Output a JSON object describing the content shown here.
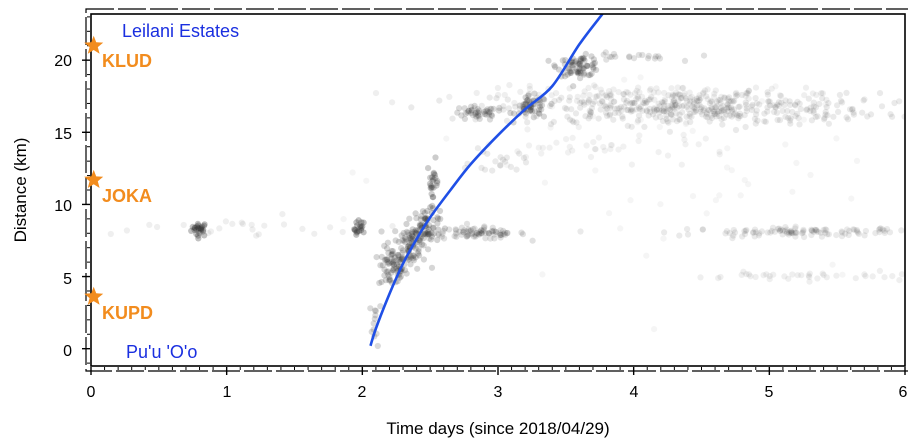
{
  "chart_data": {
    "type": "scatter",
    "title": "",
    "xlabel": "Time days (since 2018/04/29)",
    "ylabel": "Distance (km)",
    "xlim": [
      0,
      6
    ],
    "ylim": [
      -1.2,
      23.2
    ],
    "x_ticks": [
      "0",
      "1",
      "2",
      "3",
      "4",
      "5",
      "6"
    ],
    "y_ticks": [
      "0",
      "5",
      "10",
      "15",
      "20"
    ],
    "grid": false,
    "legend": "none",
    "stations": [
      {
        "name": "KLUD",
        "x": 0.02,
        "y": 21.0
      },
      {
        "name": "JOKA",
        "x": 0.02,
        "y": 11.7
      },
      {
        "name": "KUPD",
        "x": 0.02,
        "y": 3.6
      }
    ],
    "place_labels": [
      {
        "name": "Leilani Estates",
        "x": 0.22,
        "y": 22.0
      },
      {
        "name": "Pu'u 'O'o",
        "x": 0.26,
        "y": -0.05
      }
    ],
    "curve": {
      "description_label": "",
      "points": [
        [
          2.06,
          0.2
        ],
        [
          2.1,
          1.4
        ],
        [
          2.2,
          3.8
        ],
        [
          2.3,
          5.9
        ],
        [
          2.4,
          7.6
        ],
        [
          2.5,
          9.1
        ],
        [
          2.65,
          11.0
        ],
        [
          2.8,
          12.8
        ],
        [
          3.0,
          14.8
        ],
        [
          3.2,
          16.6
        ],
        [
          3.4,
          18.2
        ],
        [
          3.6,
          21.1
        ],
        [
          3.77,
          23.2
        ]
      ]
    },
    "clusters": [
      {
        "x": 0.8,
        "y": 8.3,
        "n": 25,
        "sx": 0.03,
        "sy": 0.25,
        "a": 0.3
      },
      {
        "x": 1.98,
        "y": 8.3,
        "n": 18,
        "sx": 0.02,
        "sy": 0.3,
        "a": 0.3
      },
      {
        "x": 2.1,
        "y": 1.8,
        "n": 12,
        "sx": 0.02,
        "sy": 0.8,
        "a": 0.18
      },
      {
        "x": 2.22,
        "y": 5.6,
        "n": 70,
        "sx": 0.05,
        "sy": 0.7,
        "a": 0.2
      },
      {
        "x": 2.35,
        "y": 7.2,
        "n": 80,
        "sx": 0.06,
        "sy": 0.8,
        "a": 0.2
      },
      {
        "x": 2.47,
        "y": 8.5,
        "n": 60,
        "sx": 0.05,
        "sy": 0.6,
        "a": 0.22
      },
      {
        "x": 2.52,
        "y": 11.5,
        "n": 25,
        "sx": 0.02,
        "sy": 0.8,
        "a": 0.25
      },
      {
        "x": 2.85,
        "y": 8.0,
        "n": 80,
        "sx": 0.18,
        "sy": 0.2,
        "a": 0.15
      },
      {
        "x": 2.85,
        "y": 16.3,
        "n": 40,
        "sx": 0.1,
        "sy": 0.25,
        "a": 0.18
      },
      {
        "x": 3.25,
        "y": 16.7,
        "n": 50,
        "sx": 0.06,
        "sy": 0.4,
        "a": 0.2
      },
      {
        "x": 3.6,
        "y": 19.6,
        "n": 70,
        "sx": 0.08,
        "sy": 0.35,
        "a": 0.2
      },
      {
        "x": 3.95,
        "y": 20.2,
        "n": 20,
        "sx": 0.18,
        "sy": 0.15,
        "a": 0.15
      },
      {
        "x": 4.4,
        "y": 16.6,
        "n": 400,
        "sx": 0.7,
        "sy": 0.55,
        "a": 0.1
      },
      {
        "x": 4.2,
        "y": 17.6,
        "n": 120,
        "sx": 0.7,
        "sy": 0.3,
        "a": 0.08
      },
      {
        "x": 5.3,
        "y": 8.1,
        "n": 120,
        "sx": 0.45,
        "sy": 0.15,
        "a": 0.1
      },
      {
        "x": 5.3,
        "y": 5.0,
        "n": 40,
        "sx": 0.45,
        "sy": 0.15,
        "a": 0.08
      },
      {
        "x": 3.8,
        "y": 14.0,
        "n": 40,
        "sx": 0.5,
        "sy": 0.5,
        "a": 0.07
      },
      {
        "x": 4.5,
        "y": 12.0,
        "n": 60,
        "sx": 1.0,
        "sy": 5.0,
        "a": 0.05
      },
      {
        "x": 1.2,
        "y": 8.3,
        "n": 25,
        "sx": 0.7,
        "sy": 0.4,
        "a": 0.08
      },
      {
        "x": 3.0,
        "y": 12.9,
        "n": 20,
        "sx": 0.1,
        "sy": 0.4,
        "a": 0.1
      }
    ]
  },
  "colors": {
    "station": "#f28c1e",
    "place_label": "#1a2fe0",
    "curve": "#1f4fe6",
    "points": "#333333",
    "axis": "#000000"
  }
}
